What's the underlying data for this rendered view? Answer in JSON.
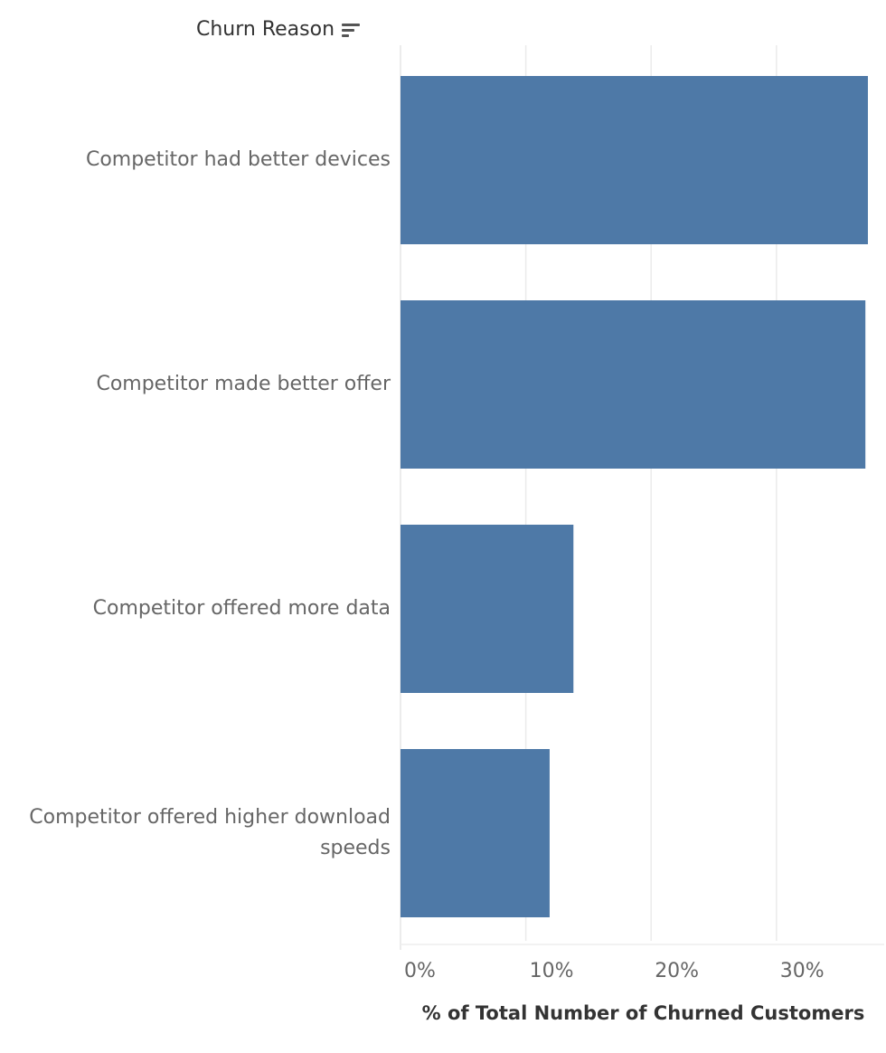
{
  "chart_data": {
    "type": "bar",
    "orientation": "horizontal",
    "row_header": "Churn Reason",
    "categories": [
      "Competitor had better devices",
      "Competitor made better offer",
      "Competitor offered more data",
      "Competitor offered higher download speeds"
    ],
    "values": [
      37.3,
      37.1,
      13.8,
      11.9
    ],
    "xlabel": "% of Total Number of Churned Customers",
    "x_ticks": [
      "0%",
      "10%",
      "20%",
      "30%"
    ],
    "xlim": [
      0,
      38.6
    ],
    "grid": true,
    "bar_color": "#4e79a7"
  },
  "header": {
    "sort_icon": "sort-descending-icon"
  }
}
